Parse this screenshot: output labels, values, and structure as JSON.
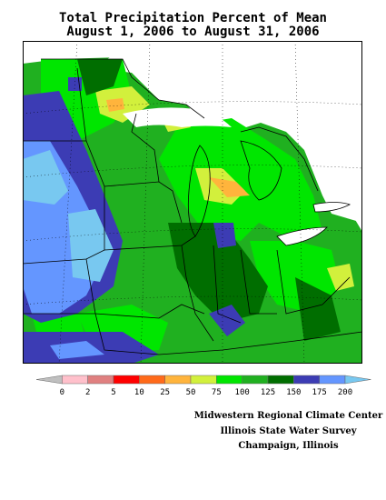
{
  "title": {
    "line1": "Total Precipitation Percent of Mean",
    "line2": "August 1, 2006 to August 31, 2006"
  },
  "legend": {
    "labels": [
      "0",
      "2",
      "5",
      "10",
      "25",
      "50",
      "75",
      "100",
      "125",
      "150",
      "175",
      "200"
    ],
    "colors": [
      "#bfbfbf",
      "#ffc0cb",
      "#e08080",
      "#ff0000",
      "#ff6a1a",
      "#ffb43c",
      "#d2f03c",
      "#00e600",
      "#20b020",
      "#006e00",
      "#3c3cb4",
      "#6496ff",
      "#78c8f0"
    ]
  },
  "credits": {
    "line1": "Midwestern Regional Climate Center",
    "line2": "Illinois State Water Survey",
    "line3": "Champaign, Illinois"
  },
  "colors": {
    "background_field": "#20b020",
    "lake_white": "#ffffff",
    "border_black": "#000000"
  }
}
